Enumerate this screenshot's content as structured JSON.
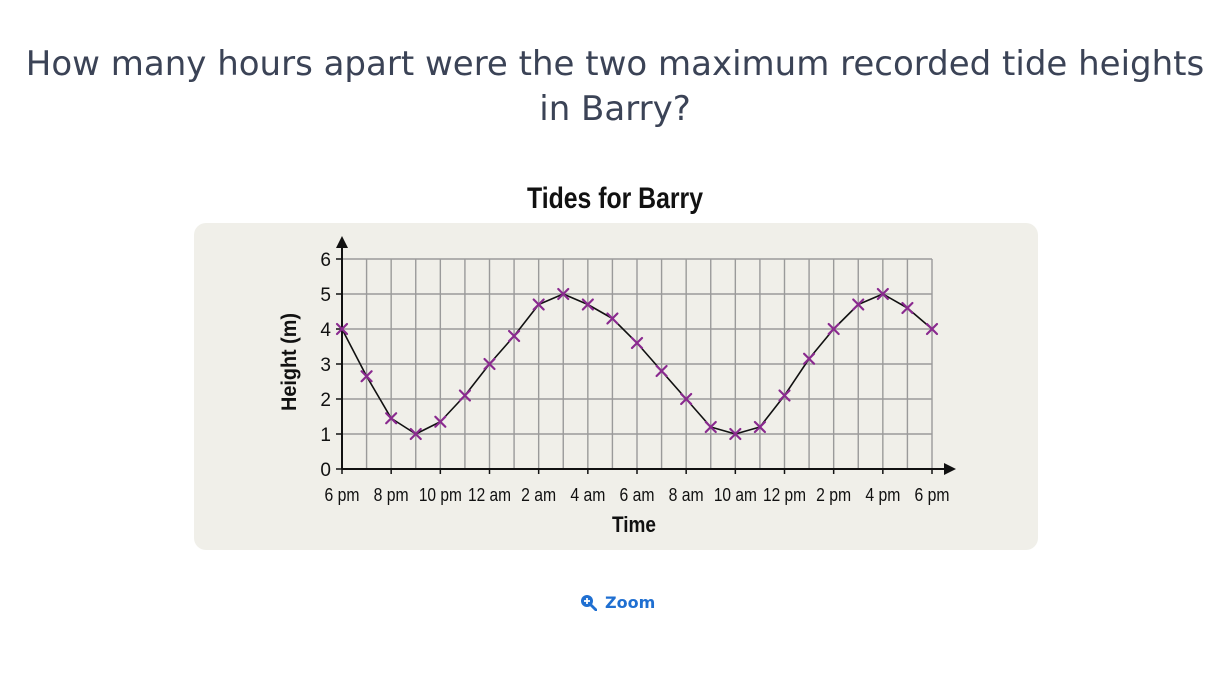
{
  "question": "How many hours apart were the two maximum recorded tide heights in Barry?",
  "zoom": {
    "label": "Zoom",
    "icon": "zoom-in-icon",
    "color": "#1f6fd1"
  },
  "chart_data": {
    "type": "line",
    "title": "Tides for Barry",
    "xlabel": "Time",
    "ylabel": "Height (m)",
    "ylim": [
      0,
      6
    ],
    "yticks": [
      0,
      1,
      2,
      3,
      4,
      5,
      6
    ],
    "xticks": [
      "6 pm",
      "8 pm",
      "10 pm",
      "12 am",
      "2 am",
      "4 am",
      "6 am",
      "8 am",
      "10 am",
      "12 pm",
      "2 pm",
      "4 pm",
      "6 pm"
    ],
    "grid": true,
    "marker": "x",
    "marker_color": "#8a2a8f",
    "line_color": "#111111",
    "panel_color": "#f0efe9",
    "series": [
      {
        "x": [
          "6 pm",
          "7 pm",
          "8 pm",
          "9 pm",
          "10 pm",
          "11 pm",
          "12 am",
          "1 am",
          "2 am",
          "3 am",
          "4 am",
          "5 am",
          "6 am",
          "7 am",
          "8 am",
          "9 am",
          "10 am",
          "11 am",
          "12 pm",
          "1 pm",
          "2 pm",
          "3 pm",
          "4 pm",
          "5 pm",
          "6 pm"
        ],
        "values": [
          4.0,
          2.65,
          1.45,
          1.0,
          1.35,
          2.1,
          3.0,
          3.8,
          4.7,
          5.0,
          4.7,
          4.3,
          3.6,
          2.8,
          2.0,
          1.2,
          1.0,
          1.2,
          2.1,
          3.15,
          4.0,
          4.7,
          5.0,
          4.6,
          4.0
        ]
      }
    ]
  }
}
